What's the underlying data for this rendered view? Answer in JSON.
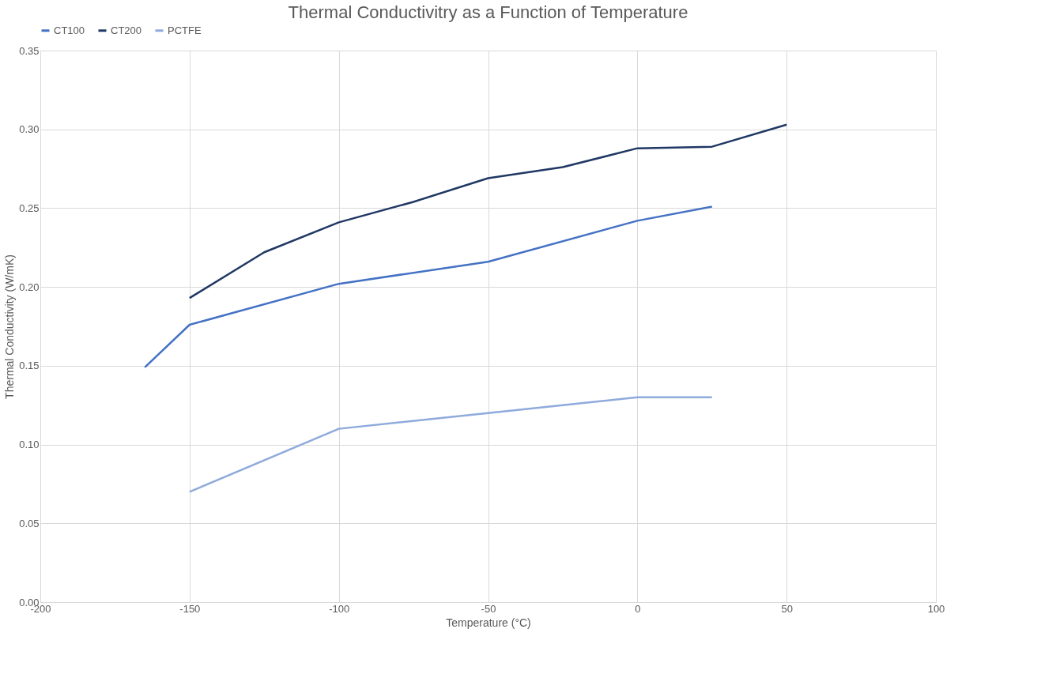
{
  "chart_data": {
    "type": "line",
    "title": "Thermal Conductivitry as a Function of Temperature",
    "xlabel": "Temperature  (°C)",
    "ylabel": "Thermal Conductivity (W/mK)",
    "series": [
      {
        "name": "CT100",
        "color": "#4472c4",
        "x": [
          -165,
          -150,
          -100,
          -50,
          0,
          25
        ],
        "values": [
          0.149,
          0.176,
          0.202,
          0.216,
          0.242,
          0.251
        ]
      },
      {
        "name": "CT200",
        "color": "#203864",
        "x": [
          -150,
          -125,
          -100,
          -75,
          -50,
          -25,
          0,
          25,
          50
        ],
        "values": [
          0.193,
          0.222,
          0.241,
          0.254,
          0.269,
          0.276,
          0.288,
          0.289,
          0.303
        ]
      },
      {
        "name": "PCTFE",
        "color": "#8faadc",
        "x": [
          -150,
          -100,
          -50,
          0,
          25
        ],
        "values": [
          0.07,
          0.11,
          0.12,
          0.13,
          0.13
        ]
      }
    ],
    "xlim": [
      -200,
      100
    ],
    "xticks": [
      -200,
      -150,
      -100,
      -50,
      0,
      50,
      100
    ],
    "ylim": [
      0,
      0.35
    ],
    "yticks": [
      {
        "value": 0,
        "label": "0.00"
      },
      {
        "value": 0.05,
        "label": "0.05"
      },
      {
        "value": 0.1,
        "label": "0.10"
      },
      {
        "value": 0.15,
        "label": "0.15"
      },
      {
        "value": 0.2,
        "label": "0.20"
      },
      {
        "value": 0.25,
        "label": "0.25"
      },
      {
        "value": 0.3,
        "label": "0.30"
      },
      {
        "value": 0.35,
        "label": "0.35"
      }
    ],
    "grid": true,
    "legend": "top",
    "marker": "none",
    "line_style": "solid"
  }
}
